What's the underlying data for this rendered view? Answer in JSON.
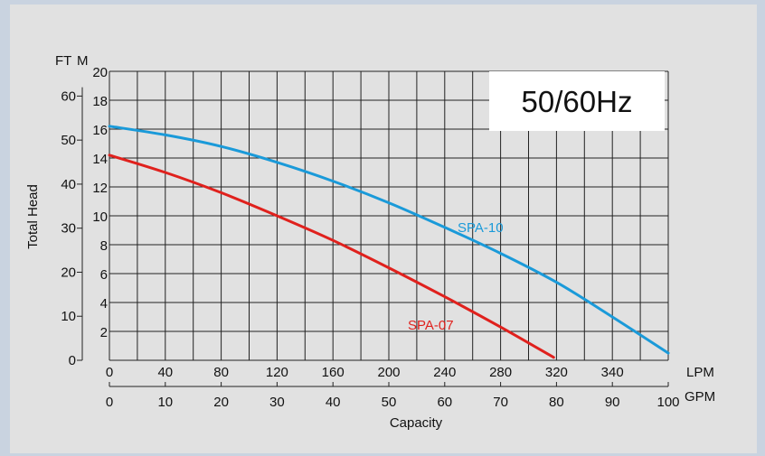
{
  "chart_data": {
    "type": "line",
    "badge": "50/60Hz",
    "ylabel": "Total Head",
    "xlabel": "Capacity",
    "left_unit": "FT",
    "right_unit": "M",
    "x_unit": "LPM",
    "x2_unit": "GPM",
    "ft_ticks": [
      "0",
      "10",
      "20",
      "30",
      "40",
      "50",
      "60"
    ],
    "m_ticks": [
      "2",
      "4",
      "6",
      "8",
      "10",
      "12",
      "14",
      "16",
      "18",
      "20"
    ],
    "lpm_ticks": [
      "0",
      "40",
      "80",
      "120",
      "160",
      "200",
      "240",
      "280",
      "320",
      "340"
    ],
    "gpm_ticks": [
      "0",
      "10",
      "20",
      "30",
      "40",
      "50",
      "60",
      "70",
      "80",
      "90",
      "100"
    ],
    "xlim_gpm": [
      0,
      100
    ],
    "ylim_m": [
      0,
      20
    ],
    "grid": true,
    "series": [
      {
        "name": "SPA-10",
        "color": "#1a9ad9",
        "x_gpm": [
          0,
          10,
          20,
          30,
          40,
          50,
          60,
          70,
          80,
          90,
          100
        ],
        "y_m": [
          16.2,
          15.6,
          14.8,
          13.7,
          12.4,
          10.9,
          9.2,
          7.4,
          5.4,
          3.0,
          0.5
        ]
      },
      {
        "name": "SPA-07",
        "color": "#e0211d",
        "x_gpm": [
          0,
          10,
          20,
          30,
          40,
          50,
          60,
          70,
          79.5
        ],
        "y_m": [
          14.2,
          13.0,
          11.6,
          10.0,
          8.3,
          6.4,
          4.4,
          2.3,
          0.2
        ]
      }
    ]
  }
}
